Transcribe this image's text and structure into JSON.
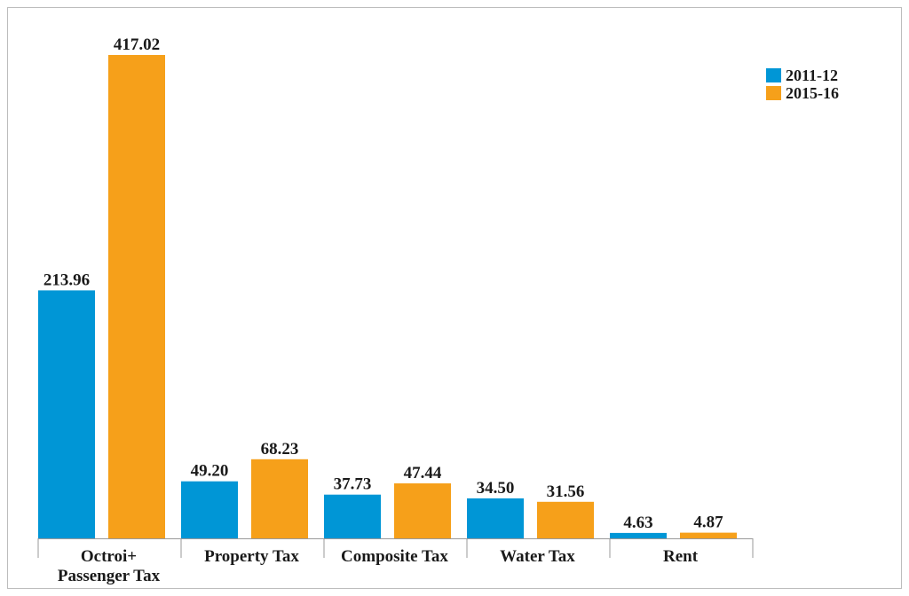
{
  "chart_data": {
    "type": "bar",
    "categories": [
      "Octroi+\nPassenger Tax",
      "Property Tax",
      "Composite Tax",
      "Water Tax",
      "Rent"
    ],
    "series": [
      {
        "name": "2011-12",
        "values": [
          213.96,
          49.2,
          37.73,
          34.5,
          4.63
        ],
        "labels": [
          "213.96",
          "49.20",
          "37.73",
          "34.50",
          "4.63"
        ]
      },
      {
        "name": "2015-16",
        "values": [
          417.02,
          68.23,
          47.44,
          31.56,
          4.87
        ],
        "labels": [
          "417.02",
          "68.23",
          "47.44",
          "31.56",
          "4.87"
        ]
      }
    ],
    "ylim": [
      0,
      417.02
    ],
    "grid": false,
    "legend": "top-right",
    "title": "",
    "xlabel": "",
    "ylabel": ""
  },
  "colors": {
    "series_2011_12": "#0096d6",
    "series_2015_16": "#f6a01a"
  }
}
